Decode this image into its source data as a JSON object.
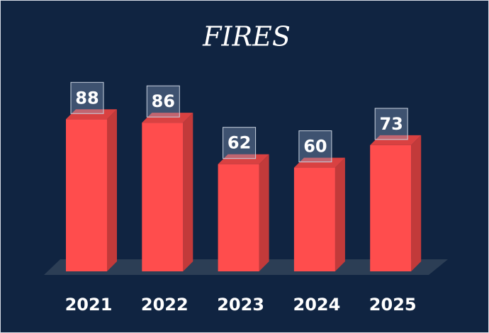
{
  "chart_data": {
    "type": "bar3d",
    "title": "FIRES",
    "categories": [
      "2021",
      "2022",
      "2023",
      "2024",
      "2025"
    ],
    "values": [
      88,
      86,
      62,
      60,
      73
    ],
    "color": "#ff4d4d"
  }
}
